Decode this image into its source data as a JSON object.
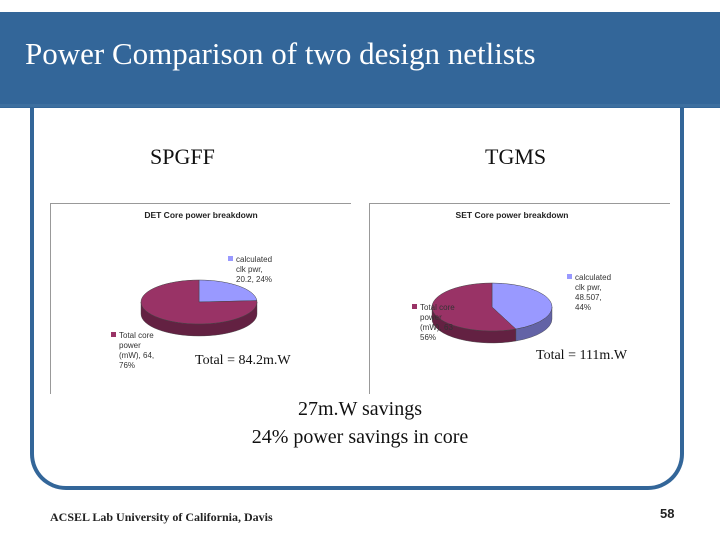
{
  "slide": {
    "title": "Power Comparison of two design netlists",
    "footer": "ACSEL Lab University of California, Davis",
    "page_number": "58",
    "left_label": "SPGFF",
    "right_label": "TGMS",
    "left_total": "Total = 84.2m.W",
    "right_total": "Total = 111m.W",
    "savings_line1": "27m.W savings",
    "savings_line2": "24% power savings in core"
  },
  "colors": {
    "banner": "#336699",
    "clock_slice": "#9999ff",
    "core_slice": "#993366"
  },
  "chart_data": [
    {
      "type": "pie",
      "title": "DET Core power breakdown",
      "series": [
        {
          "name": "calculated clk pwr",
          "value": 20.2,
          "percent": 24,
          "label_lines": [
            "calculated",
            "clk pwr,",
            "20.2, 24%"
          ]
        },
        {
          "name": "Total core power (mW)",
          "value": 64,
          "percent": 76,
          "label_lines": [
            "Total core",
            "power",
            "(mW), 64,",
            "76%"
          ]
        }
      ]
    },
    {
      "type": "pie",
      "title": "SET Core power breakdown",
      "series": [
        {
          "name": "calculated clk pwr",
          "value": 48.507,
          "percent": 44,
          "label_lines": [
            "calculated",
            "clk pwr,",
            "48.507,",
            "44%"
          ]
        },
        {
          "name": "Total core power (mW)",
          "value": 63,
          "percent": 56,
          "label_lines": [
            "Total core",
            "power",
            "(mW), 63",
            "56%"
          ]
        }
      ]
    }
  ]
}
